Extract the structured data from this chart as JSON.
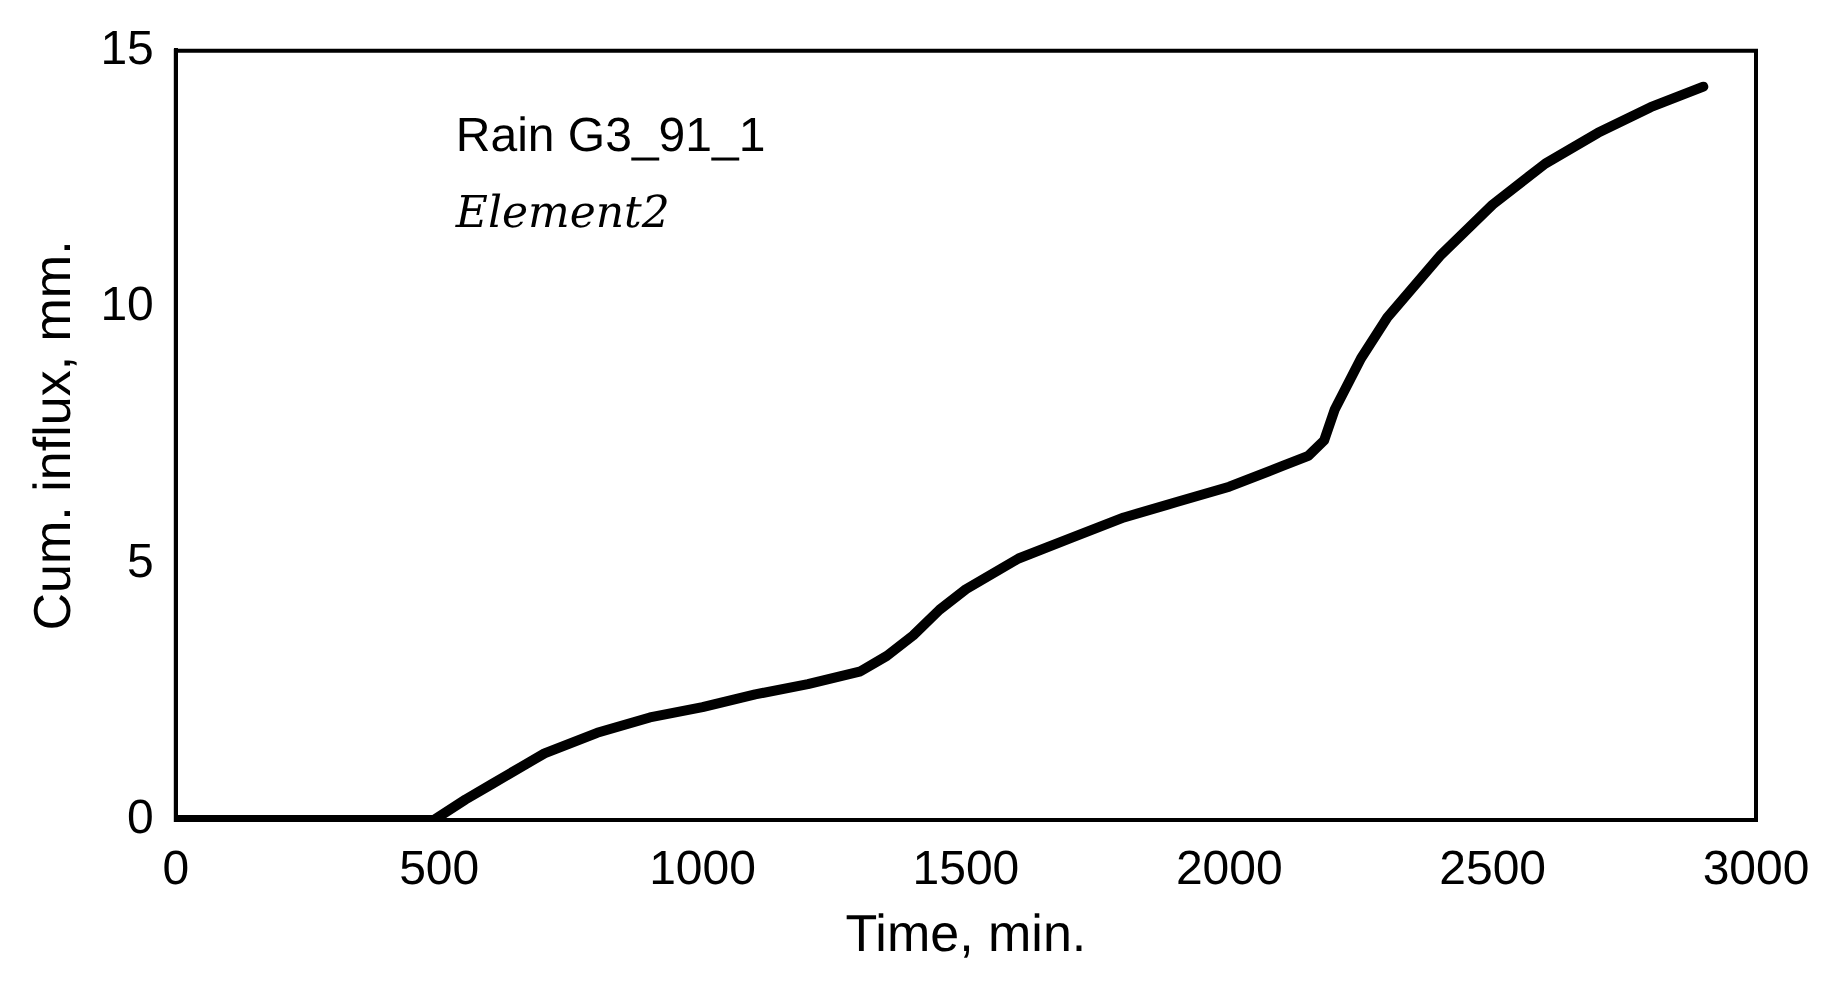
{
  "chart_data": {
    "type": "line",
    "xlabel": "Time, min.",
    "ylabel": "Cum. influx, mm.",
    "annotations": [
      "Rain G3_91_1",
      "Element2"
    ],
    "series": [
      {
        "color": "#000000",
        "x": [
          0,
          100,
          200,
          300,
          400,
          490,
          550,
          600,
          700,
          800,
          900,
          1000,
          1100,
          1200,
          1300,
          1350,
          1400,
          1450,
          1500,
          1600,
          1700,
          1800,
          1900,
          2000,
          2100,
          2150,
          2180,
          2200,
          2250,
          2300,
          2400,
          2500,
          2600,
          2700,
          2800,
          2900
        ],
        "values": [
          0,
          0,
          0,
          0,
          0,
          0,
          0.4,
          0.7,
          1.3,
          1.7,
          2.0,
          2.2,
          2.45,
          2.65,
          2.9,
          3.2,
          3.6,
          4.1,
          4.5,
          5.1,
          5.5,
          5.9,
          6.2,
          6.5,
          6.9,
          7.1,
          7.4,
          8.0,
          9.0,
          9.8,
          11.0,
          12.0,
          12.8,
          13.4,
          13.9,
          14.3
        ]
      }
    ],
    "xlim": [
      0,
      3000
    ],
    "xticks": [
      0,
      500,
      1000,
      1500,
      2000,
      2500,
      3000
    ],
    "ylim": [
      0,
      15
    ],
    "yticks": [
      0,
      5,
      10,
      15
    ],
    "grid": false,
    "legend": false,
    "marker": "none",
    "line_style": "solid"
  }
}
